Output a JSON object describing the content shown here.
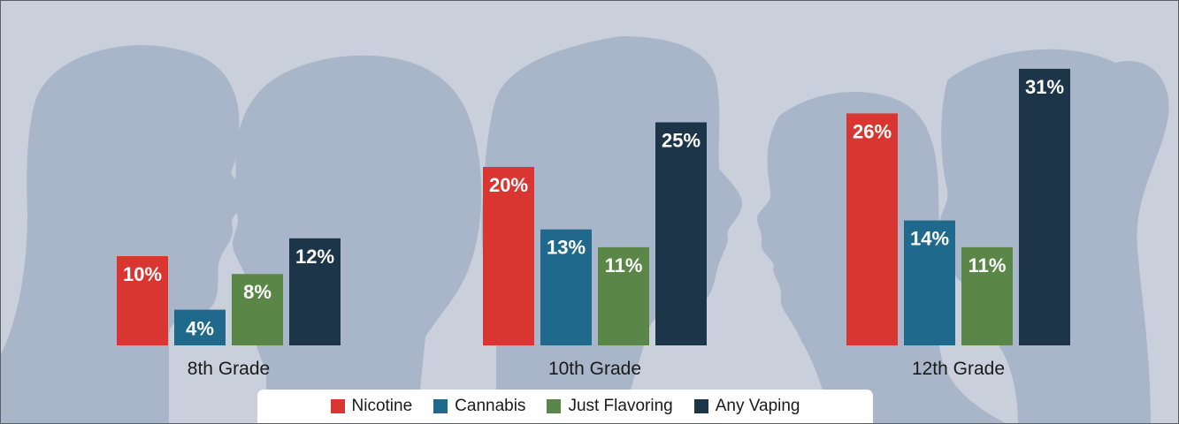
{
  "chart_data": {
    "type": "bar",
    "categories": [
      "8th Grade",
      "10th Grade",
      "12th Grade"
    ],
    "series": [
      {
        "name": "Nicotine",
        "values": [
          10,
          20,
          26
        ],
        "labels": [
          "10%",
          "20%",
          "26%"
        ],
        "color": "#d93632"
      },
      {
        "name": "Cannabis",
        "values": [
          4,
          13,
          14
        ],
        "labels": [
          "4%",
          "13%",
          "14%"
        ],
        "color": "#1f6a8c"
      },
      {
        "name": "Just Flavoring",
        "values": [
          8,
          11,
          11
        ],
        "labels": [
          "8%",
          "11%",
          "11%"
        ],
        "color": "#5a8647"
      },
      {
        "name": "Any Vaping",
        "values": [
          12,
          25,
          31
        ],
        "labels": [
          "12%",
          "25%",
          "31%"
        ],
        "color": "#1c3549"
      }
    ],
    "ylim": [
      0,
      31
    ],
    "legend_position": "bottom-center",
    "grid": false
  },
  "legend": {
    "items": [
      {
        "label": "Nicotine",
        "color": "#d93632"
      },
      {
        "label": "Cannabis",
        "color": "#1f6a8c"
      },
      {
        "label": "Just Flavoring",
        "color": "#5a8647"
      },
      {
        "label": "Any Vaping",
        "color": "#1c3549"
      }
    ]
  },
  "colors": {
    "background": "#c9d0dc",
    "silhouette": "#a9b5c8",
    "frame_border": "#5a5f66"
  }
}
